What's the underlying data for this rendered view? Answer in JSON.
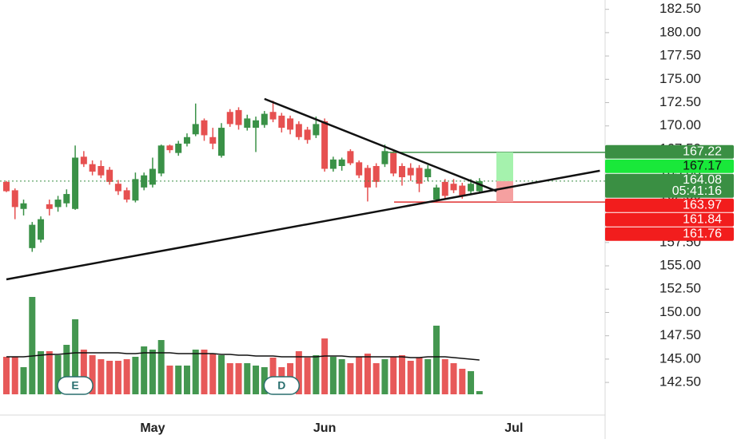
{
  "chart_data": {
    "type": "candlestick",
    "categories": [
      "",
      null,
      null,
      null,
      null,
      null,
      null,
      null,
      null,
      null,
      null,
      null,
      null,
      null,
      null,
      null,
      null,
      "May",
      null,
      null,
      null,
      null,
      null,
      null,
      null,
      null,
      null,
      null,
      null,
      null,
      null,
      null,
      null,
      null,
      null,
      null,
      null,
      "Jun",
      null,
      null,
      null,
      null,
      null,
      null,
      null,
      null,
      null,
      null,
      null,
      null,
      null,
      null,
      null,
      null,
      null,
      null,
      null,
      null,
      null,
      "Jul",
      null,
      null,
      null,
      null,
      null,
      null,
      null,
      null,
      null,
      null
    ],
    "open": [
      164.0,
      163.1,
      161.1,
      156.9,
      157.8,
      161.6,
      161.3,
      161.7,
      161.1,
      166.7,
      165.9,
      165.7,
      165.3,
      163.8,
      163.1,
      162.0,
      163.4,
      163.7,
      164.9,
      167.9,
      167.1,
      168.1,
      169.1,
      170.6,
      168.8,
      166.8,
      171.5,
      171.7,
      169.8,
      169.8,
      170.1,
      171.5,
      171.1,
      170.8,
      170.2,
      169.6,
      169.0,
      170.5,
      165.4,
      165.7,
      167.3,
      166.1,
      165.5,
      165.7,
      165.9,
      167.1,
      165.7,
      165.5,
      165.5,
      164.5,
      162.1,
      164.0,
      163.8,
      163.6,
      163.0,
      163.0,
      null,
      null,
      null,
      null,
      null,
      null,
      null,
      null,
      null,
      null,
      null,
      null,
      null,
      null
    ],
    "high": [
      164.1,
      163.3,
      162.1,
      159.7,
      160.3,
      162.1,
      162.5,
      163.2,
      167.9,
      167.3,
      166.3,
      166.3,
      165.6,
      164.2,
      163.4,
      165.0,
      165.0,
      166.6,
      168.0,
      168.0,
      168.4,
      169.2,
      172.4,
      170.8,
      169.8,
      170.3,
      171.8,
      172.0,
      171.2,
      171.0,
      171.6,
      172.7,
      171.4,
      171.1,
      170.5,
      169.9,
      171.0,
      170.8,
      166.7,
      166.6,
      167.5,
      166.3,
      165.8,
      166.0,
      168.0,
      167.5,
      166.0,
      166.0,
      165.8,
      165.8,
      163.7,
      164.3,
      164.3,
      163.9,
      164.3,
      164.4,
      null,
      null,
      null,
      null,
      null,
      null,
      null,
      null,
      null,
      null,
      null,
      null,
      null,
      null
    ],
    "low": [
      162.9,
      160.0,
      160.4,
      156.5,
      157.5,
      160.4,
      160.8,
      161.3,
      161.0,
      165.6,
      164.7,
      164.4,
      163.7,
      162.6,
      161.8,
      161.8,
      163.1,
      163.4,
      164.6,
      167.1,
      166.8,
      167.8,
      168.9,
      168.4,
      167.5,
      166.6,
      169.9,
      169.6,
      169.5,
      167.2,
      169.8,
      170.4,
      169.3,
      169.1,
      168.5,
      168.1,
      168.7,
      165.1,
      165.1,
      165.2,
      165.8,
      164.4,
      161.9,
      163.4,
      165.6,
      164.6,
      163.6,
      164.1,
      162.9,
      164.1,
      161.8,
      162.2,
      162.8,
      162.2,
      162.7,
      162.8,
      null,
      null,
      null,
      null,
      null,
      null,
      null,
      null,
      null,
      null,
      null,
      null,
      null,
      null
    ],
    "close": [
      163.0,
      161.3,
      161.7,
      159.4,
      160.0,
      161.1,
      162.1,
      162.7,
      166.6,
      165.9,
      165.1,
      164.7,
      164.0,
      163.0,
      162.1,
      164.3,
      164.7,
      165.4,
      167.9,
      167.4,
      168.1,
      168.8,
      170.2,
      169.0,
      168.1,
      169.8,
      170.2,
      170.1,
      170.8,
      170.6,
      171.3,
      170.7,
      169.8,
      169.6,
      168.8,
      168.5,
      170.2,
      165.4,
      166.4,
      166.4,
      166.0,
      164.7,
      163.4,
      164.0,
      167.3,
      164.9,
      164.5,
      164.7,
      163.8,
      165.4,
      163.4,
      162.5,
      163.1,
      162.5,
      163.8,
      164.08,
      null,
      null,
      null,
      null,
      null,
      null,
      null,
      null,
      null,
      null,
      null,
      null,
      null,
      null
    ],
    "volume": [
      47,
      47,
      34,
      122,
      54,
      54,
      49,
      62,
      94,
      56,
      49,
      44,
      42,
      42,
      44,
      47,
      60,
      56,
      68,
      36,
      36,
      36,
      56,
      56,
      51,
      49,
      39,
      39,
      39,
      36,
      34,
      46,
      34,
      39,
      54,
      46,
      49,
      70,
      47,
      44,
      39,
      47,
      51,
      39,
      44,
      47,
      49,
      42,
      46,
      44,
      86,
      44,
      39,
      32,
      29,
      4,
      null,
      null,
      null,
      null,
      null,
      null,
      null,
      null,
      null,
      null,
      null,
      null,
      null,
      null
    ],
    "volume_ma": [
      47,
      47,
      47,
      48,
      49,
      50,
      50,
      51,
      52,
      52,
      52,
      52,
      52,
      52,
      51,
      51,
      52,
      52,
      52,
      52,
      51,
      51,
      51,
      51,
      51,
      50,
      50,
      49,
      49,
      48,
      48,
      48,
      47,
      47,
      47,
      47,
      47,
      48,
      48,
      48,
      47,
      47,
      47,
      47,
      47,
      47,
      47,
      46,
      46,
      47,
      47,
      47,
      46,
      45,
      44,
      43,
      null,
      null,
      null,
      null,
      null,
      null,
      null,
      null,
      null,
      null,
      null,
      null,
      null,
      null
    ],
    "up_color": "#3a9147",
    "down_color": "#e65050",
    "ylim": [
      139.0,
      183.5
    ],
    "yticks": [
      {
        "value": 142.5,
        "label": "142.50"
      },
      {
        "value": 145,
        "label": "145.00"
      },
      {
        "value": 147.5,
        "label": "147.50"
      },
      {
        "value": 150,
        "label": "150.00"
      },
      {
        "value": 152.5,
        "label": "152.50"
      },
      {
        "value": 155,
        "label": "155.00"
      },
      {
        "value": 157.5,
        "label": "157.50"
      },
      {
        "value": 160,
        "label": "160.00"
      },
      {
        "value": 162.5,
        "label": "162.50"
      },
      {
        "value": 165,
        "label": "165.00"
      },
      {
        "value": 167.5,
        "label": "167.50"
      },
      {
        "value": 170,
        "label": "170.00"
      },
      {
        "value": 172.5,
        "label": "172.50"
      },
      {
        "value": 175,
        "label": "175.00"
      },
      {
        "value": 177.5,
        "label": "177.50"
      },
      {
        "value": 180,
        "label": "180.00"
      },
      {
        "value": 182.5,
        "label": "182.50"
      }
    ],
    "price_labels": [
      {
        "value": 167.22,
        "label": "167.22",
        "color": "#3a8f43"
      },
      {
        "value": 167.17,
        "label": "167.17",
        "color": "#19e83a"
      },
      {
        "value": 164.08,
        "label": "164.08",
        "countdown": "05:41:16",
        "color": "#3a8f43"
      },
      {
        "value": 163.97,
        "label": "163.97",
        "color": "#f21d1d"
      },
      {
        "value": 161.84,
        "label": "161.84",
        "color": "#f21d1d"
      },
      {
        "value": 161.76,
        "label": "161.76",
        "color": "#f21d1d"
      }
    ],
    "trend_lines": [
      {
        "from": [
          0,
          153.55
        ],
        "to": [
          69,
          165.2
        ]
      },
      {
        "from": [
          30,
          172.9
        ],
        "to": [
          57,
          163.0
        ]
      }
    ],
    "events": [
      {
        "label": "E",
        "index": 8
      },
      {
        "label": "D",
        "index": 32
      }
    ]
  }
}
